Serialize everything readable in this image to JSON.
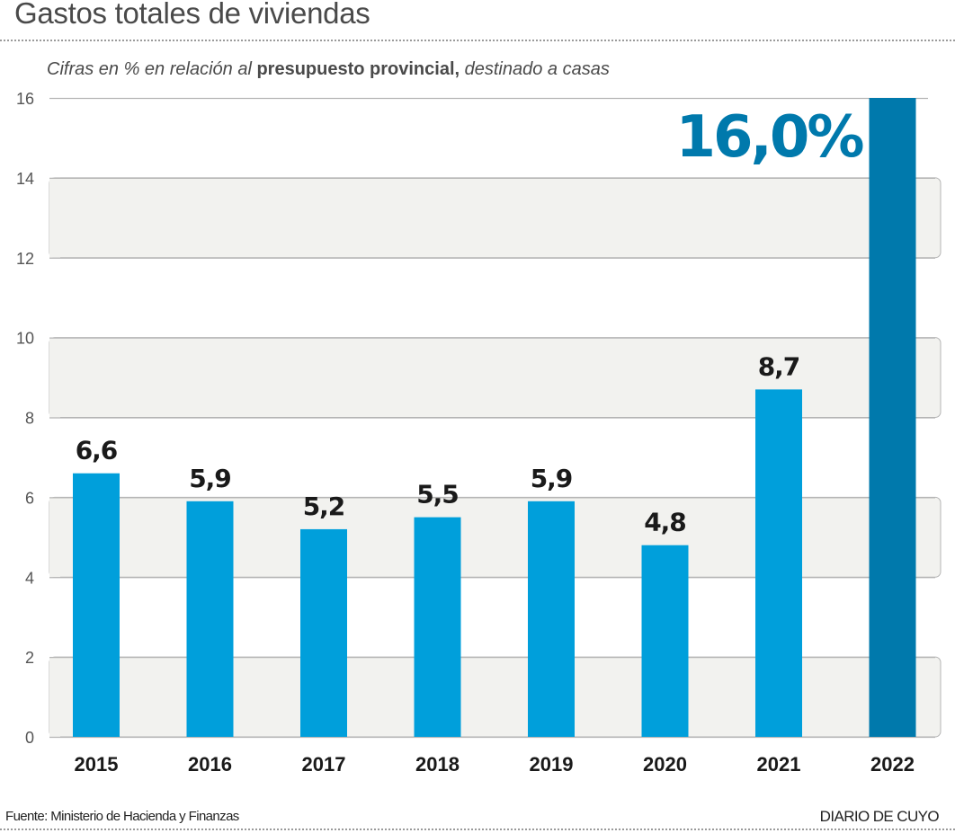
{
  "chart_data": {
    "type": "bar",
    "title": "Gastos totales de viviendas",
    "subtitle": {
      "part1": "Cifras en % en relación al ",
      "part2_bold": "presupuesto provincial,",
      "part3": " destinado a casas"
    },
    "xlabel": "",
    "ylabel": "",
    "categories": [
      "2015",
      "2016",
      "2017",
      "2018",
      "2019",
      "2020",
      "2021",
      "2022"
    ],
    "values": [
      6.6,
      5.9,
      5.2,
      5.5,
      5.9,
      4.8,
      8.7,
      16.0
    ],
    "data_labels": [
      "6,6",
      "5,9",
      "5,2",
      "5,5",
      "5,9",
      "4,8",
      "8,7",
      "16,0%"
    ],
    "ylim": [
      0,
      16
    ],
    "yticks": [
      0,
      2,
      4,
      6,
      8,
      10,
      12,
      14,
      16
    ],
    "grid": true,
    "highlight_index": 7,
    "colors": {
      "bar": "#009fdb",
      "highlight_bar": "#0079ac",
      "highlight_label": "#0079ac",
      "label": "#1a1a1a",
      "band": "#f2f2ef",
      "gridline": "#b5b5b5",
      "tick_label": "#555555"
    }
  },
  "footer": {
    "source": "Fuente: Ministerio de Hacienda y Finanzas",
    "brand": "DIARIO DE CUYO"
  }
}
